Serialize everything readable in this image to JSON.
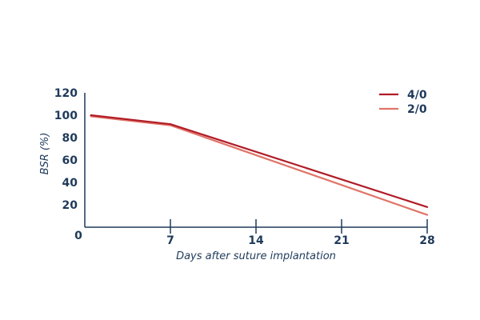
{
  "chart_data": {
    "type": "line",
    "xlabel": "Days after suture implantation",
    "ylabel": "BSR (%)",
    "x_ticks": [
      "0",
      "7",
      "14",
      "21",
      "28"
    ],
    "y_ticks": [
      "20",
      "40",
      "60",
      "80",
      "100",
      "120"
    ],
    "xlim": [
      0,
      28
    ],
    "ylim": [
      0,
      120
    ],
    "grid": false,
    "legend_position": "top-right",
    "series": [
      {
        "name": "4/0",
        "color": "#b11c27",
        "points": [
          {
            "x": 0.5,
            "y": 100
          },
          {
            "x": 7,
            "y": 92
          },
          {
            "x": 28,
            "y": 18
          }
        ]
      },
      {
        "name": "2/0",
        "color": "#e07468",
        "points": [
          {
            "x": 0.5,
            "y": 99
          },
          {
            "x": 7,
            "y": 91
          },
          {
            "x": 28,
            "y": 11
          }
        ]
      }
    ]
  }
}
